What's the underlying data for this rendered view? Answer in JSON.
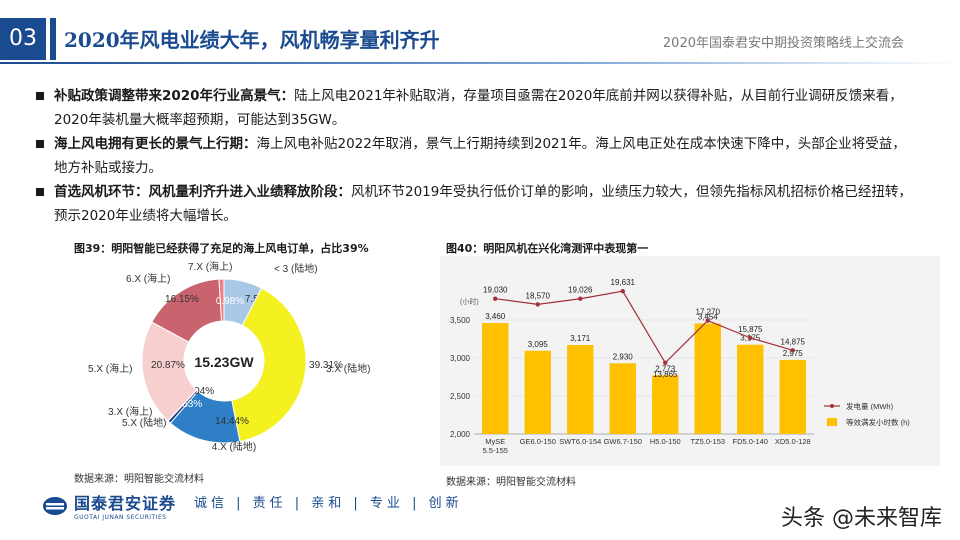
{
  "header": {
    "slide_number": "03",
    "title": "2020年风电业绩大年，风机畅享量利齐升",
    "event": "2020年国泰君安中期投资策略线上交流会"
  },
  "bullets": [
    {
      "lead": "补贴政策调整带来2020年行业高景气：",
      "text": "陆上风电2021年补贴取消，存量项目亟需在2020年底前并网以获得补贴，从目前行业调研反馈来看，2020年装机量大概率超预期，可能达到35GW。"
    },
    {
      "lead": "海上风电拥有更长的景气上行期：",
      "text": "海上风电补贴2022年取消，景气上行期持续到2021年。海上风电正处在成本快速下降中，头部企业将受益，地方补贴或接力。"
    },
    {
      "lead": "首选风机环节：风机量利齐升进入业绩释放阶段：",
      "text": "风机环节2019年受执行低价订单的影响，业绩压力较大，但领先指标风机招标价格已经扭转，预示2020年业绩将大幅增长。"
    }
  ],
  "figure39": {
    "title": "图39：明阳智能已经获得了充足的海上风电订单，占比39%",
    "source": "数据来源：明阳智能交流材料"
  },
  "figure40": {
    "title": "图40：明阳风机在兴化湾测评中表现第一",
    "source": "数据来源：明阳智能交流材料"
  },
  "chart_data": [
    {
      "type": "pie",
      "center_label": "15.23GW",
      "slices": [
        {
          "label": "< 3 (陆地)",
          "value": 7.58,
          "display": "7.58%",
          "color": "#a9c7e6"
        },
        {
          "label": "3.X (陆地)",
          "value": 39.31,
          "display": "39.31%",
          "color": "#f5f020"
        },
        {
          "label": "4.X (陆地)",
          "value": 14.44,
          "display": "14.44%",
          "color": "#2f7fc6"
        },
        {
          "label": "5.X (陆地)",
          "value": 0.63,
          "display": "0.63%",
          "color": "#1f3f8a"
        },
        {
          "label": "3.X (海上)",
          "value": 0.04,
          "display": "0.04%",
          "color": "#d9d9d9"
        },
        {
          "label": "5.X (海上)",
          "value": 20.87,
          "display": "20.87%",
          "color": "#f7cfcf"
        },
        {
          "label": "6.X (海上)",
          "value": 16.15,
          "display": "16.15%",
          "color": "#c9646e"
        },
        {
          "label": "7.X (海上)",
          "value": 0.98,
          "display": "0.98%",
          "color": "#f08080"
        }
      ]
    },
    {
      "type": "bar",
      "categories": [
        "MySE 5.5-155",
        "GE6.0-150",
        "SWT6.0-154",
        "GW6.7-150",
        "H5.0-150",
        "TZ5.0-153",
        "FD5.0-140",
        "XD5.0-128"
      ],
      "y_unit_label": "(小时)",
      "ylim": [
        2000,
        3500
      ],
      "yticks": [
        "2,000",
        "2,500",
        "3,000",
        "3,500"
      ],
      "series": [
        {
          "name": "等效满发小时数 (h)",
          "values": [
            3460,
            3095,
            3171,
            2930,
            2773,
            3454,
            3175,
            2975
          ],
          "labels": [
            "3,460",
            "3,095",
            "3,171",
            "2,930",
            "2,773",
            "3,454",
            "3,175",
            "2,975"
          ],
          "color": "#ffc000"
        },
        {
          "name": "发电量 (MWh)",
          "values": [
            19030,
            18570,
            19026,
            19631,
            13865,
            17270,
            15875,
            14875
          ],
          "labels": [
            "19,030",
            "18,570",
            "19,026",
            "19,631",
            "13,865",
            "17,270",
            "15,875",
            "14,875"
          ],
          "color": "#a0303a"
        }
      ]
    }
  ],
  "footer": {
    "logo_cn": "国泰君安证券",
    "logo_en": "GUOTAI JUNAN SECURITIES",
    "slogan": "诚信 | 责任 | 亲和 | 专业 | 创新"
  },
  "watermark": "头条 @未来智库"
}
